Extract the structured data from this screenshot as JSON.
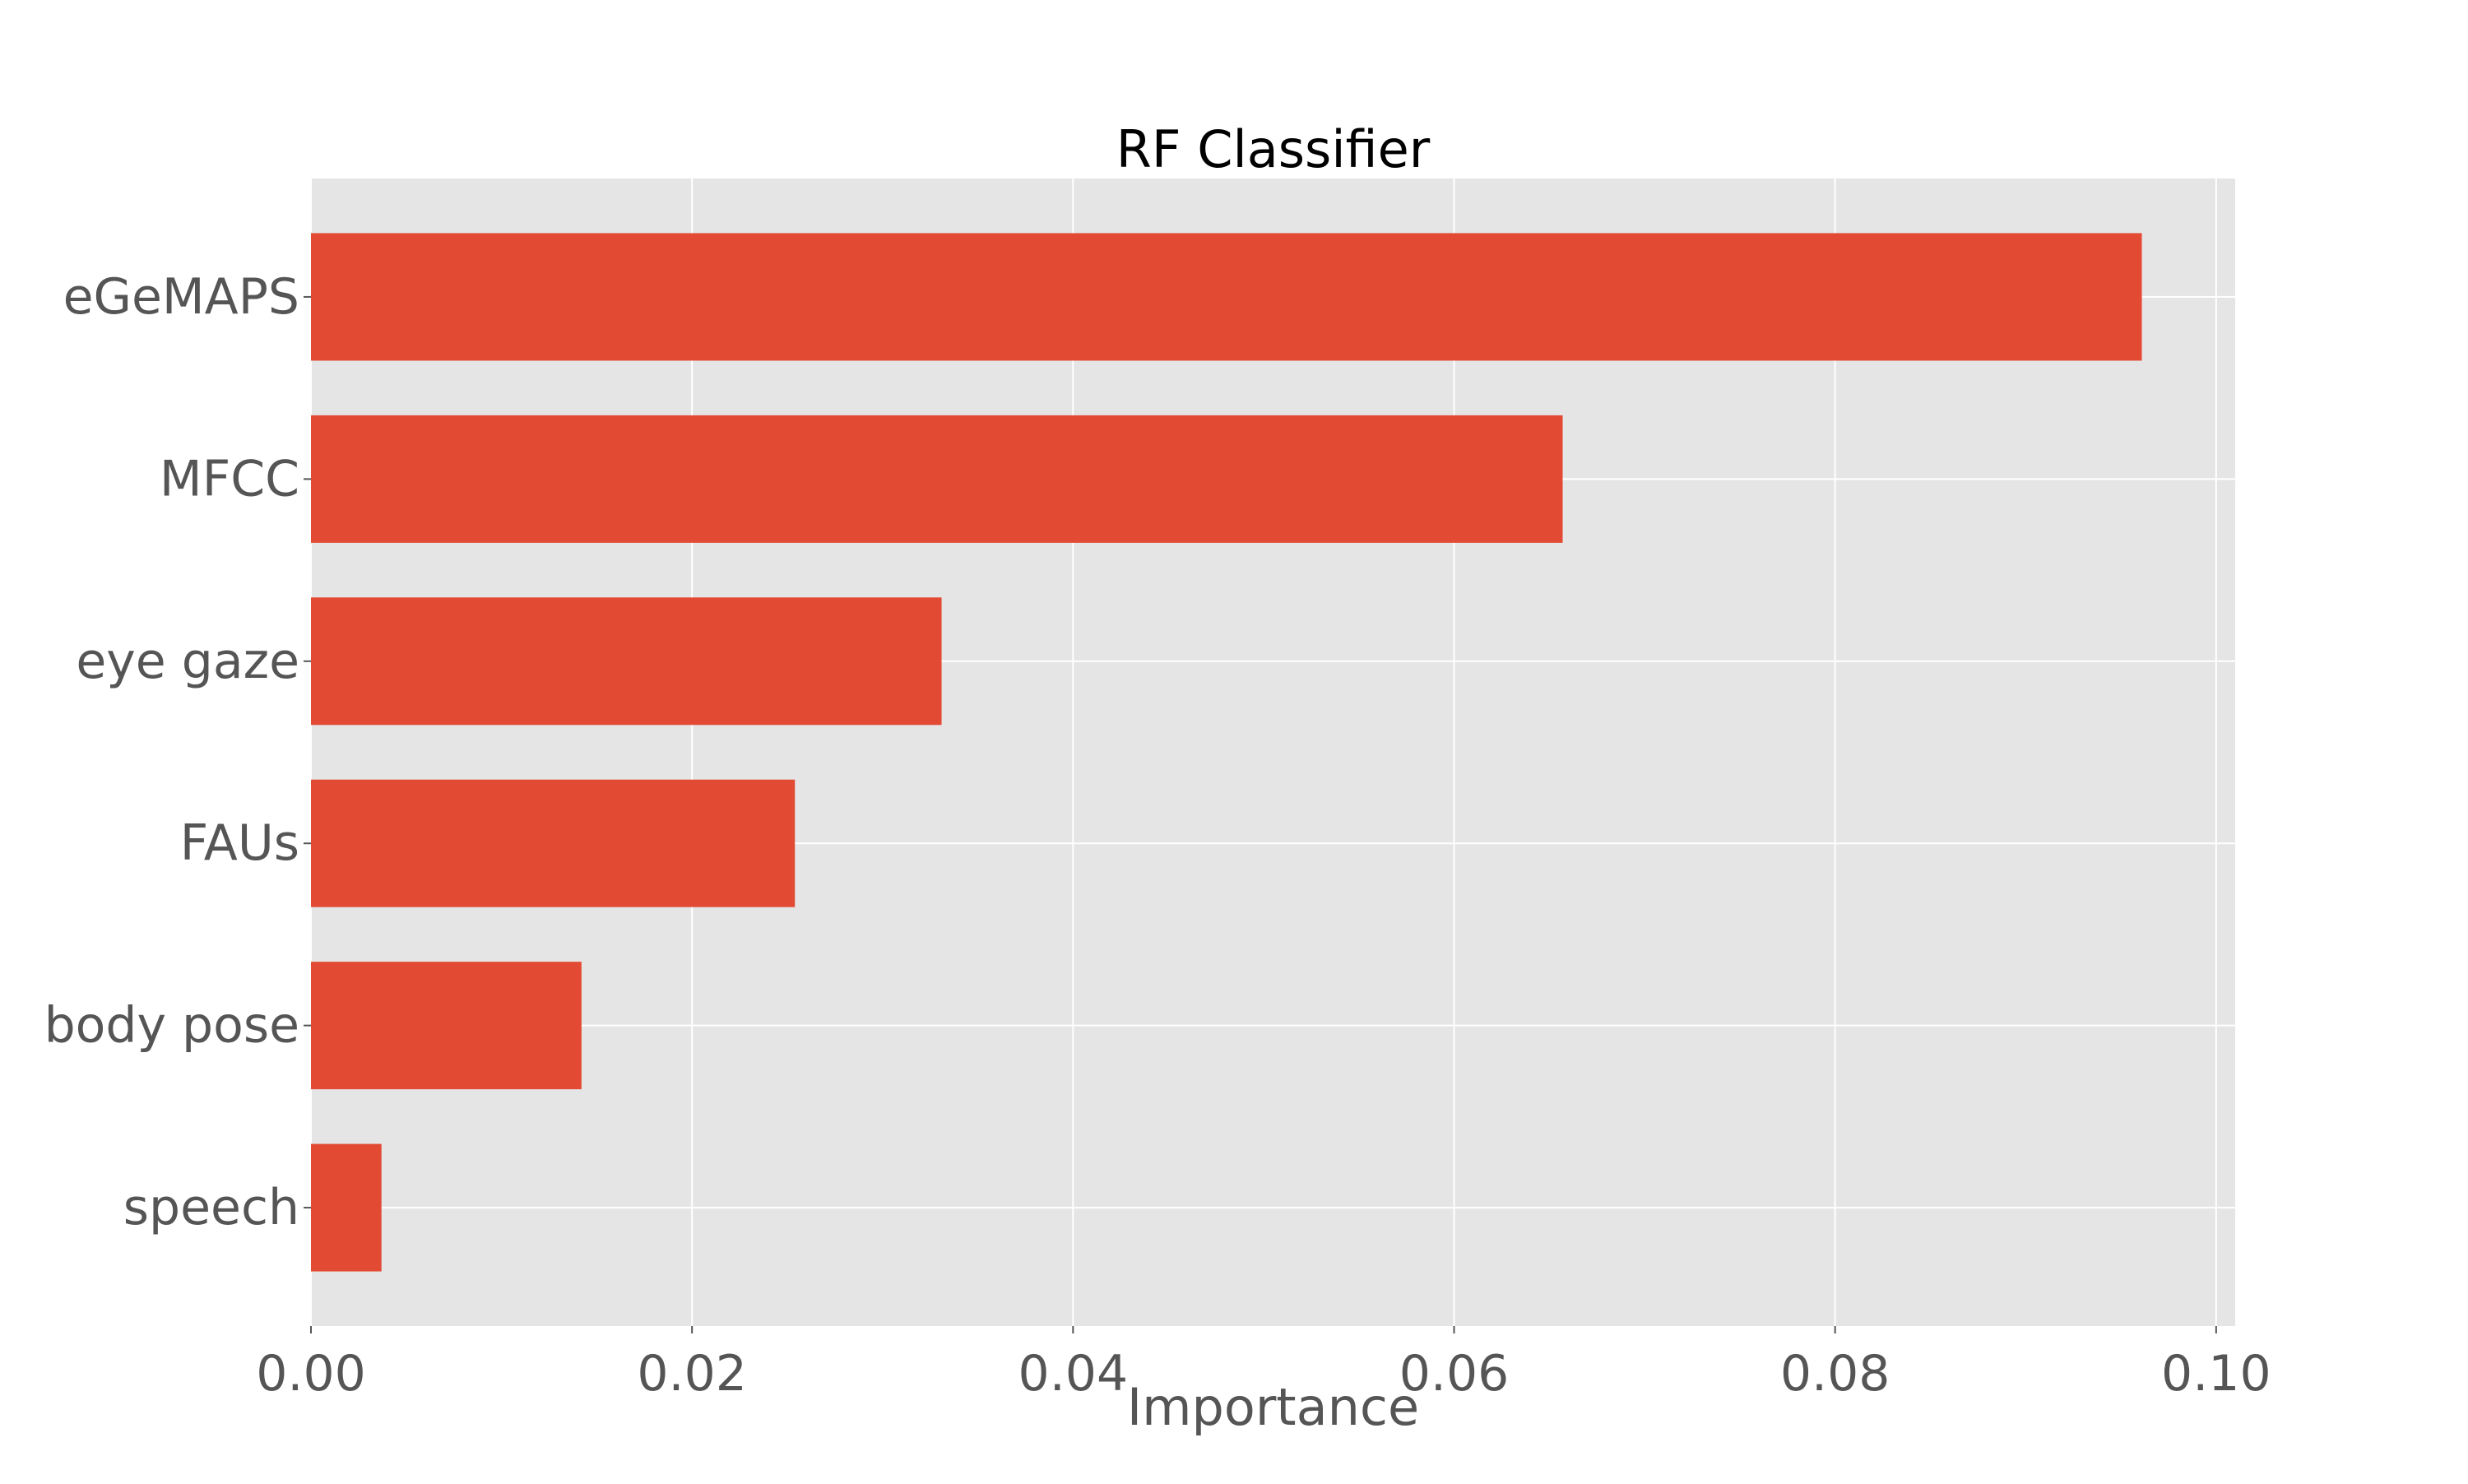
{
  "chart_data": {
    "type": "bar",
    "orientation": "horizontal",
    "title": "RF Classifier",
    "xlabel": "Importance",
    "ylabel": "",
    "categories": [
      "eGeMAPS",
      "MFCC",
      "eye gaze",
      "FAUs",
      "body pose",
      "speech"
    ],
    "values": [
      0.0961,
      0.0657,
      0.0331,
      0.0254,
      0.0142,
      0.0037
    ],
    "xlim": [
      0.0,
      0.101
    ],
    "xticks": [
      0.0,
      0.02,
      0.04,
      0.06,
      0.08,
      0.1
    ],
    "xtick_labels": [
      "0.00",
      "0.02",
      "0.04",
      "0.06",
      "0.08",
      "0.10"
    ],
    "grid": true,
    "legend": "none",
    "colors": {
      "bar": "#E24A33",
      "plot_background": "#E5E5E5",
      "grid": "#FFFFFF",
      "tick_label": "#555555",
      "title": "#000000"
    }
  }
}
